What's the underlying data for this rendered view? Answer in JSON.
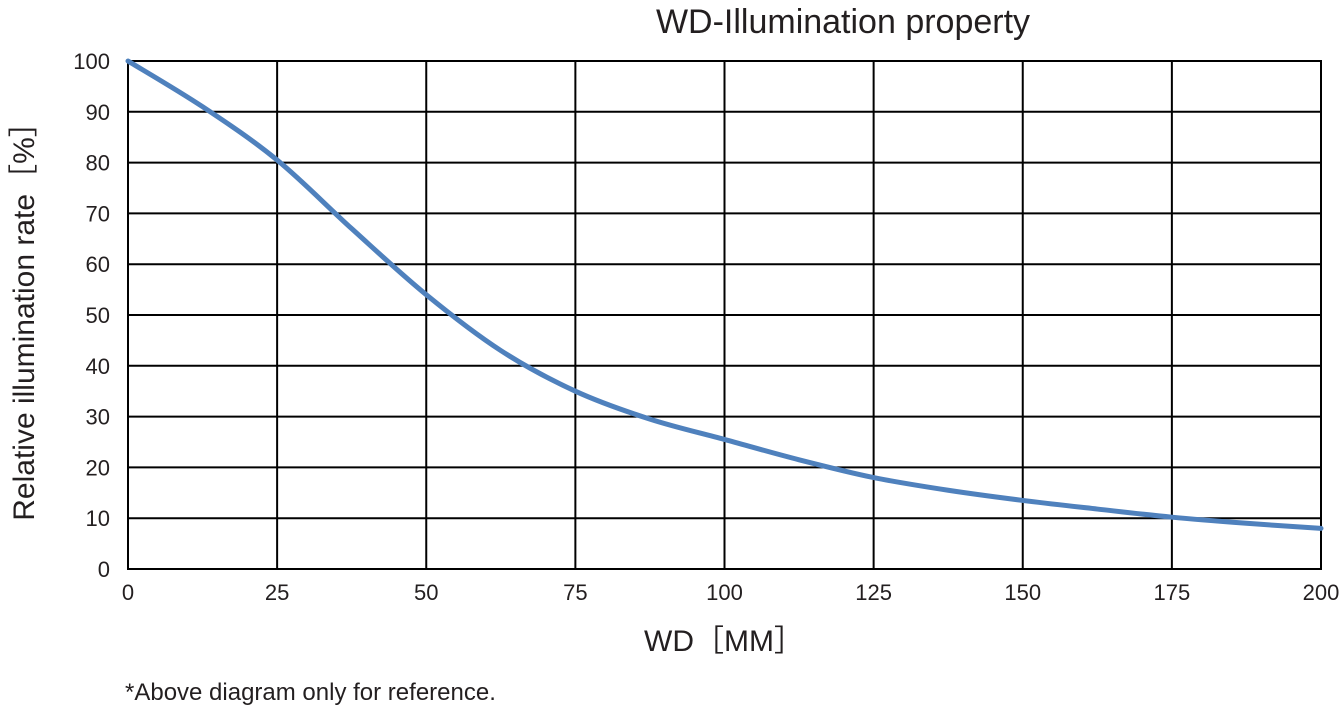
{
  "chart_data": {
    "type": "line",
    "title": "WD-Illumination property",
    "xlabel": "WD［MM］",
    "ylabel": "Relative illumination rate［%］",
    "xlim": [
      0,
      200
    ],
    "ylim": [
      0,
      100
    ],
    "x_ticks": [
      0,
      25,
      50,
      75,
      100,
      125,
      150,
      175,
      200
    ],
    "y_ticks": [
      0,
      10,
      20,
      30,
      40,
      50,
      60,
      70,
      80,
      90,
      100
    ],
    "grid": true,
    "series": [
      {
        "color": "#4f81bd",
        "x": [
          0,
          12.5,
          25,
          37.5,
          50,
          62.5,
          75,
          87.5,
          100,
          112.5,
          125,
          137.5,
          150,
          162.5,
          175,
          187.5,
          200
        ],
        "y": [
          100,
          91,
          80.5,
          67,
          54,
          43,
          35,
          29.5,
          25.5,
          21.5,
          18,
          15.5,
          13.5,
          11.8,
          10.2,
          9,
          8
        ]
      }
    ]
  },
  "footnote": "*Above diagram only for reference."
}
